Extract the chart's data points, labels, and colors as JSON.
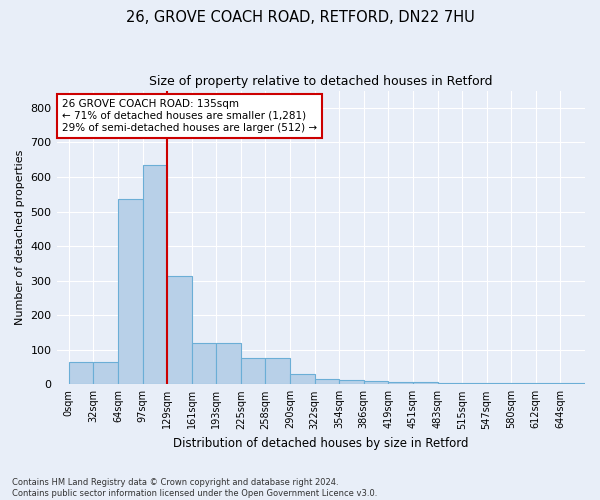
{
  "title1": "26, GROVE COACH ROAD, RETFORD, DN22 7HU",
  "title2": "Size of property relative to detached houses in Retford",
  "xlabel": "Distribution of detached houses by size in Retford",
  "ylabel": "Number of detached properties",
  "footnote": "Contains HM Land Registry data © Crown copyright and database right 2024.\nContains public sector information licensed under the Open Government Licence v3.0.",
  "bar_values": [
    65,
    65,
    535,
    635,
    313,
    120,
    120,
    75,
    75,
    30,
    15,
    12,
    10,
    8,
    8,
    5,
    5,
    5,
    5,
    5,
    5
  ],
  "bin_labels": [
    "0sqm",
    "32sqm",
    "64sqm",
    "97sqm",
    "129sqm",
    "161sqm",
    "193sqm",
    "225sqm",
    "258sqm",
    "290sqm",
    "322sqm",
    "354sqm",
    "386sqm",
    "419sqm",
    "451sqm",
    "483sqm",
    "515sqm",
    "547sqm",
    "580sqm",
    "612sqm",
    "644sqm"
  ],
  "bar_color": "#b8d0e8",
  "bar_edge_color": "#6baed6",
  "bg_color": "#e8eef8",
  "grid_color": "#ffffff",
  "vline_color": "#cc0000",
  "annotation_text": "26 GROVE COACH ROAD: 135sqm\n← 71% of detached houses are smaller (1,281)\n29% of semi-detached houses are larger (512) →",
  "annotation_box_color": "white",
  "annotation_box_edge": "#cc0000",
  "ylim": [
    0,
    850
  ],
  "yticks": [
    0,
    100,
    200,
    300,
    400,
    500,
    600,
    700,
    800
  ]
}
